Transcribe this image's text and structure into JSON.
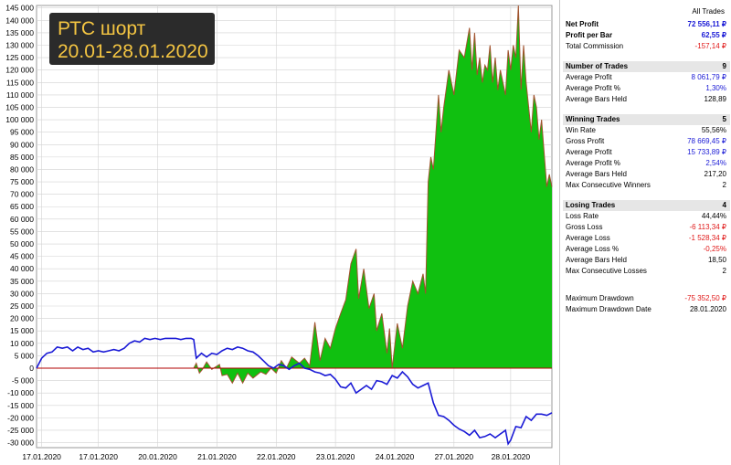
{
  "title": {
    "line1": "РТС шорт",
    "line2": "20.01-28.01.2020"
  },
  "colors": {
    "equity_fill": "#10c010",
    "equity_line": "#a0522d",
    "position_line": "#1a1ad6",
    "grid": "#d2d2d2",
    "zero_line": "#b00000"
  },
  "chart_data": {
    "type": "area",
    "ylim": [
      -32000,
      146000
    ],
    "yticks": [
      -30000,
      -25000,
      -20000,
      -15000,
      -10000,
      -5000,
      0,
      5000,
      10000,
      15000,
      20000,
      25000,
      30000,
      35000,
      40000,
      45000,
      50000,
      55000,
      60000,
      65000,
      70000,
      75000,
      80000,
      85000,
      90000,
      95000,
      100000,
      105000,
      110000,
      115000,
      120000,
      125000,
      130000,
      135000,
      140000,
      145000
    ],
    "ytick_labels": [
      "-30 000",
      "-25 000",
      "-20 000",
      "-15 000",
      "-10 000",
      "-5 000",
      "0",
      "5 000",
      "10 000",
      "15 000",
      "20 000",
      "25 000",
      "30 000",
      "35 000",
      "40 000",
      "45 000",
      "50 000",
      "55 000",
      "60 000",
      "65 000",
      "70 000",
      "75 000",
      "80 000",
      "85 000",
      "90 000",
      "95 000",
      "100 000",
      "105 000",
      "110 000",
      "115 000",
      "120 000",
      "125 000",
      "130 000",
      "135 000",
      "140 000",
      "145 000"
    ],
    "xlim": [
      0,
      100
    ],
    "xticks": [
      1,
      12,
      23.5,
      35,
      46.5,
      58,
      69.5,
      81,
      92
    ],
    "xtick_labels": [
      "17.01.2020",
      "17.01.2020",
      "20.01.2020",
      "21.01.2020",
      "22.01.2020",
      "23.01.2020",
      "24.01.2020",
      "27.01.2020",
      "28.01.2020"
    ],
    "series": [
      {
        "type": "area",
        "points": [
          [
            0,
            0
          ],
          [
            30.5,
            0
          ],
          [
            31,
            2000
          ],
          [
            31.6,
            -2000
          ],
          [
            32.2,
            -500
          ],
          [
            33,
            2500
          ],
          [
            34,
            -500
          ],
          [
            35.5,
            1500
          ],
          [
            36,
            -3000
          ],
          [
            37,
            -2500
          ],
          [
            38,
            -6000
          ],
          [
            39,
            -2000
          ],
          [
            40,
            -6000
          ],
          [
            41,
            -2000
          ],
          [
            42,
            -4000
          ],
          [
            43.5,
            -1500
          ],
          [
            44.5,
            -2500
          ],
          [
            45.5,
            0
          ],
          [
            46.5,
            -2000
          ],
          [
            47.5,
            3000
          ],
          [
            48.5,
            0
          ],
          [
            49.5,
            4500
          ],
          [
            51,
            2000
          ],
          [
            52,
            4000
          ],
          [
            53,
            1000
          ],
          [
            54,
            18500
          ],
          [
            55,
            3000
          ],
          [
            56,
            12000
          ],
          [
            57,
            8000
          ],
          [
            58,
            16000
          ],
          [
            59,
            22000
          ],
          [
            60,
            27500
          ],
          [
            61,
            42000
          ],
          [
            62,
            48000
          ],
          [
            62.5,
            28000
          ],
          [
            63.5,
            40000
          ],
          [
            64.5,
            24000
          ],
          [
            65.5,
            30000
          ],
          [
            66,
            15000
          ],
          [
            67,
            22000
          ],
          [
            68,
            6000
          ],
          [
            68.5,
            16000
          ],
          [
            69,
            0
          ],
          [
            70,
            18000
          ],
          [
            71,
            8000
          ],
          [
            72,
            25000
          ],
          [
            73,
            35000
          ],
          [
            74,
            30000
          ],
          [
            75,
            38000
          ],
          [
            75.5,
            30000
          ],
          [
            76,
            75000
          ],
          [
            76.5,
            85000
          ],
          [
            77,
            80000
          ],
          [
            78,
            110000
          ],
          [
            78.5,
            95000
          ],
          [
            79,
            105000
          ],
          [
            80,
            120000
          ],
          [
            81,
            110000
          ],
          [
            82,
            128000
          ],
          [
            83,
            125000
          ],
          [
            84,
            137000
          ],
          [
            84.5,
            120000
          ],
          [
            85,
            135000
          ],
          [
            85.5,
            118000
          ],
          [
            86,
            125000
          ],
          [
            86.5,
            115000
          ],
          [
            87,
            122000
          ],
          [
            87.5,
            120000
          ],
          [
            88,
            130000
          ],
          [
            88.5,
            115000
          ],
          [
            89,
            125000
          ],
          [
            89.5,
            112000
          ],
          [
            90,
            120000
          ],
          [
            91,
            110000
          ],
          [
            91.5,
            128000
          ],
          [
            92,
            120000
          ],
          [
            92.5,
            130000
          ],
          [
            93,
            125000
          ],
          [
            93.5,
            146000
          ],
          [
            94,
            112000
          ],
          [
            94.5,
            130000
          ],
          [
            95,
            115000
          ],
          [
            96,
            95000
          ],
          [
            96.5,
            110000
          ],
          [
            97,
            105000
          ],
          [
            97.5,
            92000
          ],
          [
            98,
            100000
          ],
          [
            99,
            73000
          ],
          [
            99.5,
            78000
          ],
          [
            100,
            73000
          ]
        ]
      },
      {
        "type": "line",
        "points": [
          [
            0,
            0
          ],
          [
            1,
            4000
          ],
          [
            2,
            6000
          ],
          [
            3,
            6500
          ],
          [
            4,
            8500
          ],
          [
            5,
            8000
          ],
          [
            6,
            8500
          ],
          [
            7,
            7000
          ],
          [
            8,
            8500
          ],
          [
            9,
            7500
          ],
          [
            10,
            8000
          ],
          [
            11,
            6500
          ],
          [
            12,
            7000
          ],
          [
            13,
            6500
          ],
          [
            14,
            7000
          ],
          [
            15,
            7500
          ],
          [
            16,
            7000
          ],
          [
            17,
            8000
          ],
          [
            18,
            10000
          ],
          [
            19,
            11000
          ],
          [
            20,
            10500
          ],
          [
            21,
            12000
          ],
          [
            22,
            11500
          ],
          [
            23,
            12000
          ],
          [
            24,
            11500
          ],
          [
            25,
            12000
          ],
          [
            26,
            12000
          ],
          [
            27,
            12000
          ],
          [
            28,
            11500
          ],
          [
            29,
            12000
          ],
          [
            30,
            12000
          ],
          [
            30.5,
            11500
          ],
          [
            31,
            4000
          ],
          [
            32,
            6000
          ],
          [
            33,
            4500
          ],
          [
            34,
            6000
          ],
          [
            35,
            5500
          ],
          [
            36,
            7000
          ],
          [
            37,
            8000
          ],
          [
            38,
            7500
          ],
          [
            39,
            8500
          ],
          [
            40,
            8000
          ],
          [
            41,
            7000
          ],
          [
            42,
            6500
          ],
          [
            43,
            5000
          ],
          [
            44,
            3000
          ],
          [
            45,
            1000
          ],
          [
            46,
            0
          ],
          [
            47,
            1500
          ],
          [
            48,
            1000
          ],
          [
            49,
            -500
          ],
          [
            50,
            1000
          ],
          [
            51,
            2000
          ],
          [
            52,
            0
          ],
          [
            53,
            -500
          ],
          [
            54,
            -1500
          ],
          [
            55,
            -2000
          ],
          [
            56,
            -3000
          ],
          [
            57,
            -2500
          ],
          [
            58,
            -4500
          ],
          [
            59,
            -7500
          ],
          [
            60,
            -8000
          ],
          [
            61,
            -6000
          ],
          [
            62,
            -10000
          ],
          [
            63,
            -8500
          ],
          [
            64,
            -7000
          ],
          [
            65,
            -8500
          ],
          [
            66,
            -5000
          ],
          [
            67,
            -5500
          ],
          [
            68,
            -6500
          ],
          [
            69,
            -3000
          ],
          [
            70,
            -4000
          ],
          [
            71,
            -1500
          ],
          [
            72,
            -3500
          ],
          [
            73,
            -6500
          ],
          [
            74,
            -8000
          ],
          [
            75,
            -7000
          ],
          [
            76,
            -6000
          ],
          [
            77,
            -14000
          ],
          [
            78,
            -19000
          ],
          [
            79,
            -19500
          ],
          [
            80,
            -21000
          ],
          [
            81,
            -23000
          ],
          [
            82,
            -24500
          ],
          [
            83,
            -25500
          ],
          [
            84,
            -27000
          ],
          [
            85,
            -25000
          ],
          [
            86,
            -28000
          ],
          [
            87,
            -27500
          ],
          [
            88,
            -26500
          ],
          [
            89,
            -28000
          ],
          [
            90,
            -26500
          ],
          [
            91,
            -25000
          ],
          [
            91.5,
            -30500
          ],
          [
            92,
            -29000
          ],
          [
            93,
            -23500
          ],
          [
            94,
            -24000
          ],
          [
            95,
            -19500
          ],
          [
            96,
            -21000
          ],
          [
            97,
            -18500
          ],
          [
            98,
            -18500
          ],
          [
            99,
            -19000
          ],
          [
            100,
            -18000
          ]
        ]
      }
    ]
  },
  "stats": {
    "header": "All Trades",
    "rows": [
      {
        "label": "Net Profit",
        "value": "72 556,11 ₽",
        "bold": true,
        "color": "blue"
      },
      {
        "label": "Profit per Bar",
        "value": "62,55 ₽",
        "bold": true,
        "color": "blue"
      },
      {
        "label": "Total Commission",
        "value": "-157,14 ₽",
        "color": "red"
      },
      {
        "gap": true
      },
      {
        "label": "Number of Trades",
        "value": "9",
        "section": true
      },
      {
        "label": "Average Profit",
        "value": "8 061,79 ₽",
        "color": "blue"
      },
      {
        "label": "Average Profit %",
        "value": "1,30%",
        "color": "blue"
      },
      {
        "label": "Average Bars Held",
        "value": "128,89"
      },
      {
        "gap": true
      },
      {
        "label": "Winning Trades",
        "value": "5",
        "section": true
      },
      {
        "label": "Win Rate",
        "value": "55,56%"
      },
      {
        "label": "Gross Profit",
        "value": "78 669,45 ₽",
        "color": "blue"
      },
      {
        "label": "Average Profit",
        "value": "15 733,89 ₽",
        "color": "blue"
      },
      {
        "label": "Average Profit %",
        "value": "2,54%",
        "color": "blue"
      },
      {
        "label": "Average Bars Held",
        "value": "217,20"
      },
      {
        "label": "Max Consecutive Winners",
        "value": "2"
      },
      {
        "gap": true
      },
      {
        "label": "Losing Trades",
        "value": "4",
        "section": true
      },
      {
        "label": "Loss Rate",
        "value": "44,44%"
      },
      {
        "label": "Gross Loss",
        "value": "-6 113,34 ₽",
        "color": "red"
      },
      {
        "label": "Average Loss",
        "value": "-1 528,34 ₽",
        "color": "red"
      },
      {
        "label": "Average Loss %",
        "value": "-0,25%",
        "color": "red"
      },
      {
        "label": "Average Bars Held",
        "value": "18,50"
      },
      {
        "label": "Max Consecutive Losses",
        "value": "2"
      },
      {
        "gap2": true
      },
      {
        "label": "Maximum Drawdown",
        "value": "-75 352,50 ₽",
        "color": "red"
      },
      {
        "label": "Maximum Drawdown Date",
        "value": "28.01.2020"
      }
    ]
  }
}
